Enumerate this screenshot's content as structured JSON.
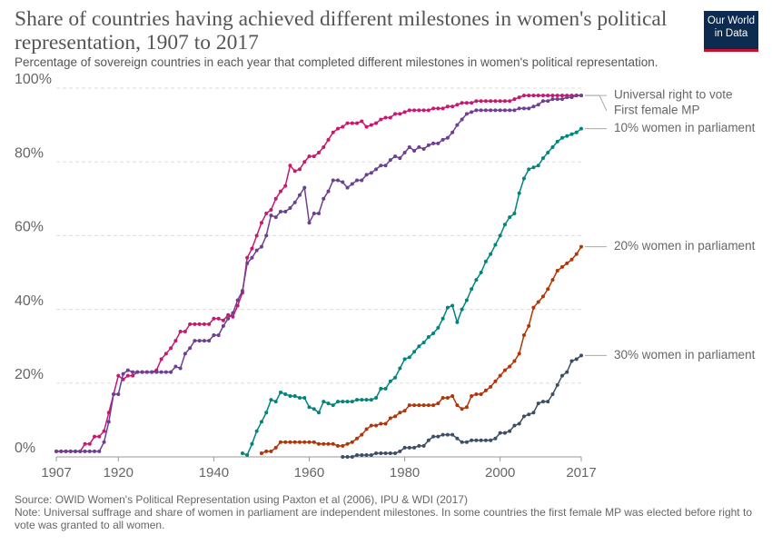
{
  "chart_data": {
    "type": "line",
    "title": "Share of countries having achieved different milestones in women's political representation, 1907 to 2017",
    "subtitle": "Percentage of sovereign countries in each year that completed different milestones in women's political representation.",
    "logo": [
      "Our World",
      "in Data"
    ],
    "source": "Source: OWID Women's Political Representation using Paxton et al (2006), IPU & WDI (2017)",
    "note": "Note: Universal suffrage and share of women in parliament are independent milestones. In some countries the first female MP was elected before right to vote was granted to all women.",
    "x": [
      1907,
      1908,
      1909,
      1910,
      1911,
      1912,
      1913,
      1914,
      1915,
      1916,
      1917,
      1918,
      1919,
      1920,
      1921,
      1922,
      1923,
      1924,
      1925,
      1926,
      1927,
      1928,
      1929,
      1930,
      1931,
      1932,
      1933,
      1934,
      1935,
      1936,
      1937,
      1938,
      1939,
      1940,
      1941,
      1942,
      1943,
      1944,
      1945,
      1946,
      1947,
      1948,
      1949,
      1950,
      1951,
      1952,
      1953,
      1954,
      1955,
      1956,
      1957,
      1958,
      1959,
      1960,
      1961,
      1962,
      1963,
      1964,
      1965,
      1966,
      1967,
      1968,
      1969,
      1970,
      1971,
      1972,
      1973,
      1974,
      1975,
      1976,
      1977,
      1978,
      1979,
      1980,
      1981,
      1982,
      1983,
      1984,
      1985,
      1986,
      1987,
      1988,
      1989,
      1990,
      1991,
      1992,
      1993,
      1994,
      1995,
      1996,
      1997,
      1998,
      1999,
      2000,
      2001,
      2002,
      2003,
      2004,
      2005,
      2006,
      2007,
      2008,
      2009,
      2010,
      2011,
      2012,
      2013,
      2014,
      2015,
      2016,
      2017
    ],
    "xlim": [
      1907,
      2017
    ],
    "xticks": [
      1907,
      1920,
      1940,
      1960,
      1980,
      2000,
      2017
    ],
    "ylim": [
      0,
      100
    ],
    "yticks": [
      {
        "value": 0,
        "label": "0%"
      },
      {
        "value": 20,
        "label": "20%"
      },
      {
        "value": 40,
        "label": "40%"
      },
      {
        "value": 60,
        "label": "60%"
      },
      {
        "value": 80,
        "label": "80%"
      },
      {
        "value": 100,
        "label": "100%"
      }
    ],
    "grid": true,
    "series": [
      {
        "name": "Universal right to vote",
        "color": "#c4196f",
        "values": [
          1.5,
          1.5,
          1.5,
          1.5,
          1.5,
          1.5,
          3.5,
          3.5,
          5.5,
          5.5,
          7,
          12,
          17,
          22,
          21,
          22,
          22,
          23,
          23,
          23,
          23,
          23.5,
          26.5,
          28,
          29.5,
          31.5,
          34,
          34,
          36,
          36,
          36,
          36,
          36,
          37.5,
          37.5,
          37,
          38.5,
          38,
          41,
          44.5,
          54,
          56.5,
          60,
          63.5,
          66,
          67,
          70,
          72,
          73.5,
          79,
          77.5,
          78,
          80,
          81.5,
          81.5,
          82.5,
          84,
          86,
          88,
          89,
          89.5,
          90.5,
          90.5,
          90.5,
          91,
          89.5,
          90,
          90.5,
          91.5,
          92,
          92,
          93,
          93,
          93.5,
          94,
          94,
          94,
          94,
          94,
          94.5,
          94.5,
          94.5,
          95,
          95,
          95.5,
          96,
          96,
          96,
          96.5,
          96.5,
          96.5,
          96.5,
          96.5,
          96.5,
          96.5,
          96.5,
          97,
          97.5,
          98,
          98,
          98,
          98,
          98,
          98,
          98,
          98,
          98,
          98,
          98,
          98,
          98
        ]
      },
      {
        "name": "First female MP",
        "color": "#6d3e91",
        "values": [
          1.5,
          1.5,
          1.5,
          1.5,
          1.5,
          1.5,
          1.5,
          1.5,
          1.5,
          1.5,
          4,
          9.5,
          17,
          17,
          22.5,
          23.5,
          23,
          23,
          23,
          23,
          23,
          23,
          23,
          23,
          23,
          24.5,
          24,
          28,
          29.5,
          31.5,
          31.5,
          31.5,
          31.5,
          33,
          33,
          35.5,
          37.5,
          39,
          42.5,
          45,
          52.5,
          54,
          56,
          57,
          60,
          65.5,
          65,
          66.5,
          66.5,
          67.5,
          69,
          71,
          73,
          63.5,
          66,
          66,
          70,
          72,
          75,
          75,
          74.5,
          73,
          74,
          75,
          75,
          76.5,
          77,
          78,
          79,
          79,
          80.5,
          81.5,
          81,
          82.5,
          84,
          83,
          84,
          83.5,
          84.5,
          85,
          85,
          86,
          86.5,
          88,
          90,
          91.5,
          93,
          93.5,
          94,
          94,
          94,
          94,
          94,
          94,
          94,
          94,
          94,
          94.5,
          94.5,
          94.5,
          95,
          95.5,
          96.5,
          96.5,
          97,
          97,
          97,
          97.5,
          97.5,
          98,
          98
        ]
      },
      {
        "name": "10% women in parliament",
        "color": "#00847e",
        "values": [
          null,
          null,
          null,
          null,
          null,
          null,
          null,
          null,
          null,
          null,
          null,
          null,
          null,
          null,
          null,
          null,
          null,
          null,
          null,
          null,
          null,
          null,
          null,
          null,
          null,
          null,
          null,
          null,
          null,
          null,
          null,
          null,
          null,
          null,
          null,
          null,
          null,
          null,
          null,
          1,
          0.5,
          3.5,
          7,
          9.5,
          12,
          15.5,
          15,
          17.5,
          17,
          16.5,
          16.5,
          16,
          16,
          13.5,
          13,
          12,
          15,
          14.5,
          14,
          15,
          15,
          15,
          15,
          15.5,
          15.5,
          15.5,
          15.5,
          16,
          18.5,
          18.5,
          20.5,
          21.5,
          24,
          26.5,
          27,
          28.5,
          30,
          31,
          32.5,
          33.5,
          35,
          37.5,
          40.5,
          41,
          36.5,
          40,
          42.5,
          45.5,
          48,
          50,
          53,
          55,
          57.5,
          60,
          63,
          65,
          66,
          71.5,
          75.5,
          78,
          78.5,
          79,
          81,
          82.5,
          84,
          85.5,
          86.5,
          87,
          87.5,
          88,
          89
        ]
      },
      {
        "name": "20% women in parliament",
        "color": "#b13507",
        "values": [
          null,
          null,
          null,
          null,
          null,
          null,
          null,
          null,
          null,
          null,
          null,
          null,
          null,
          null,
          null,
          null,
          null,
          null,
          null,
          null,
          null,
          null,
          null,
          null,
          null,
          null,
          null,
          null,
          null,
          null,
          null,
          null,
          null,
          null,
          null,
          null,
          null,
          null,
          null,
          null,
          null,
          null,
          null,
          1,
          1.5,
          1.5,
          2.5,
          4,
          4,
          4,
          4,
          4,
          4,
          4,
          4,
          3.5,
          3.5,
          3.5,
          3.5,
          3,
          3,
          3.5,
          4,
          5,
          6,
          7.5,
          8.5,
          8.5,
          9,
          9,
          10.5,
          11,
          12,
          12.5,
          14,
          14,
          14,
          14,
          14,
          14,
          14.5,
          16,
          16,
          16.5,
          14,
          13,
          13.5,
          16.5,
          17,
          17,
          18,
          19,
          20.5,
          22,
          23.5,
          24.5,
          26,
          28,
          33,
          35.5,
          40.5,
          42,
          43.5,
          45.5,
          48,
          50.5,
          51.5,
          52.5,
          53.5,
          55,
          57
        ]
      },
      {
        "name": "30% women in parliament",
        "color": "#3c4e66",
        "values": [
          null,
          null,
          null,
          null,
          null,
          null,
          null,
          null,
          null,
          null,
          null,
          null,
          null,
          null,
          null,
          null,
          null,
          null,
          null,
          null,
          null,
          null,
          null,
          null,
          null,
          null,
          null,
          null,
          null,
          null,
          null,
          null,
          null,
          null,
          null,
          null,
          null,
          null,
          null,
          null,
          null,
          null,
          null,
          null,
          null,
          null,
          null,
          null,
          null,
          null,
          null,
          null,
          null,
          null,
          null,
          null,
          null,
          null,
          null,
          null,
          0,
          0,
          0,
          0.5,
          0.5,
          0.5,
          0.5,
          1,
          1,
          1,
          1,
          1,
          1.5,
          2.5,
          2.5,
          2.5,
          3,
          3,
          4.5,
          5.5,
          5.5,
          6,
          6,
          6,
          5,
          4,
          4,
          4.5,
          4.5,
          4.5,
          4.5,
          4.5,
          5,
          6.5,
          6.5,
          7,
          8.5,
          9,
          11,
          11.5,
          12,
          14.5,
          15,
          15,
          17,
          19.5,
          22,
          23,
          26,
          26.5,
          27.5
        ]
      }
    ]
  }
}
